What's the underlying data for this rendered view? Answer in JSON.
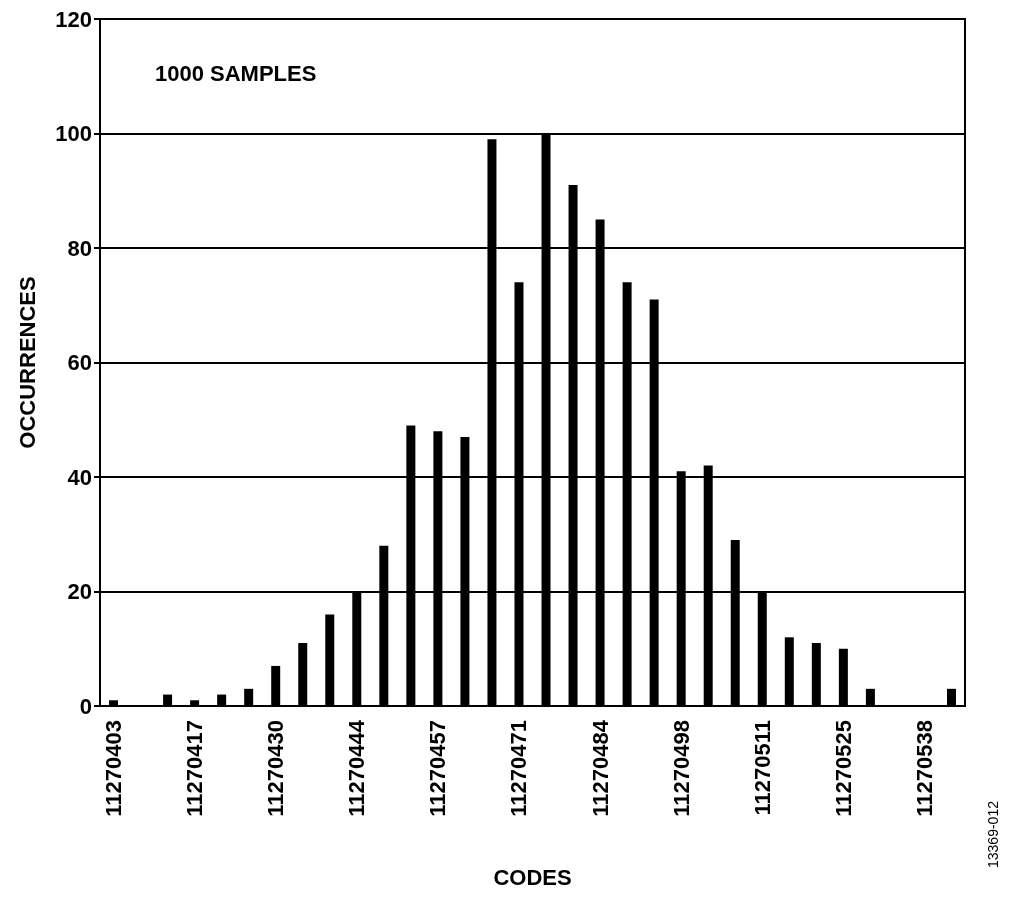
{
  "chart_data": {
    "type": "bar",
    "xlabel": "CODES",
    "ylabel": "OCCURRENCES",
    "categories": [
      "11270403",
      null,
      null,
      "11270417",
      null,
      null,
      "11270430",
      null,
      null,
      "11270444",
      null,
      null,
      "11270457",
      null,
      null,
      "11270471",
      null,
      null,
      "11270484",
      null,
      null,
      "11270498",
      null,
      null,
      "11270511",
      null,
      null,
      "11270525",
      null,
      null,
      "11270538",
      null
    ],
    "values": [
      1,
      0,
      2,
      1,
      2,
      3,
      7,
      11,
      16,
      20,
      28,
      49,
      48,
      47,
      99,
      74,
      100,
      91,
      85,
      74,
      71,
      41,
      42,
      29,
      20,
      12,
      11,
      10,
      3,
      0,
      0,
      3
    ],
    "color": "#000000",
    "ylim": [
      0,
      120
    ],
    "yticks": [
      0,
      20,
      40,
      60,
      80,
      100,
      120
    ],
    "grid": "y",
    "annotations": [
      "1000 SAMPLES",
      "13369-012"
    ]
  }
}
